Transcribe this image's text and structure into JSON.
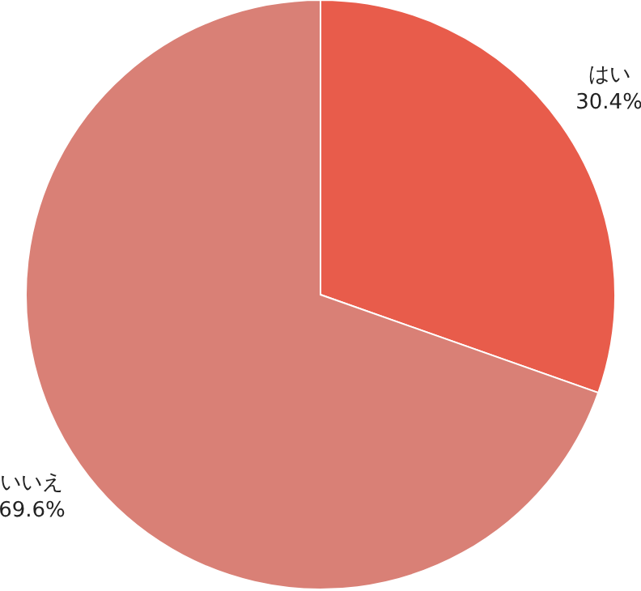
{
  "chart_data": {
    "type": "pie",
    "categories": [
      "はい",
      "いいえ"
    ],
    "values": [
      30.4,
      69.6
    ],
    "value_labels": [
      "30.4%",
      "69.6%"
    ],
    "colors": [
      "#e85c4b",
      "#d98076"
    ]
  }
}
